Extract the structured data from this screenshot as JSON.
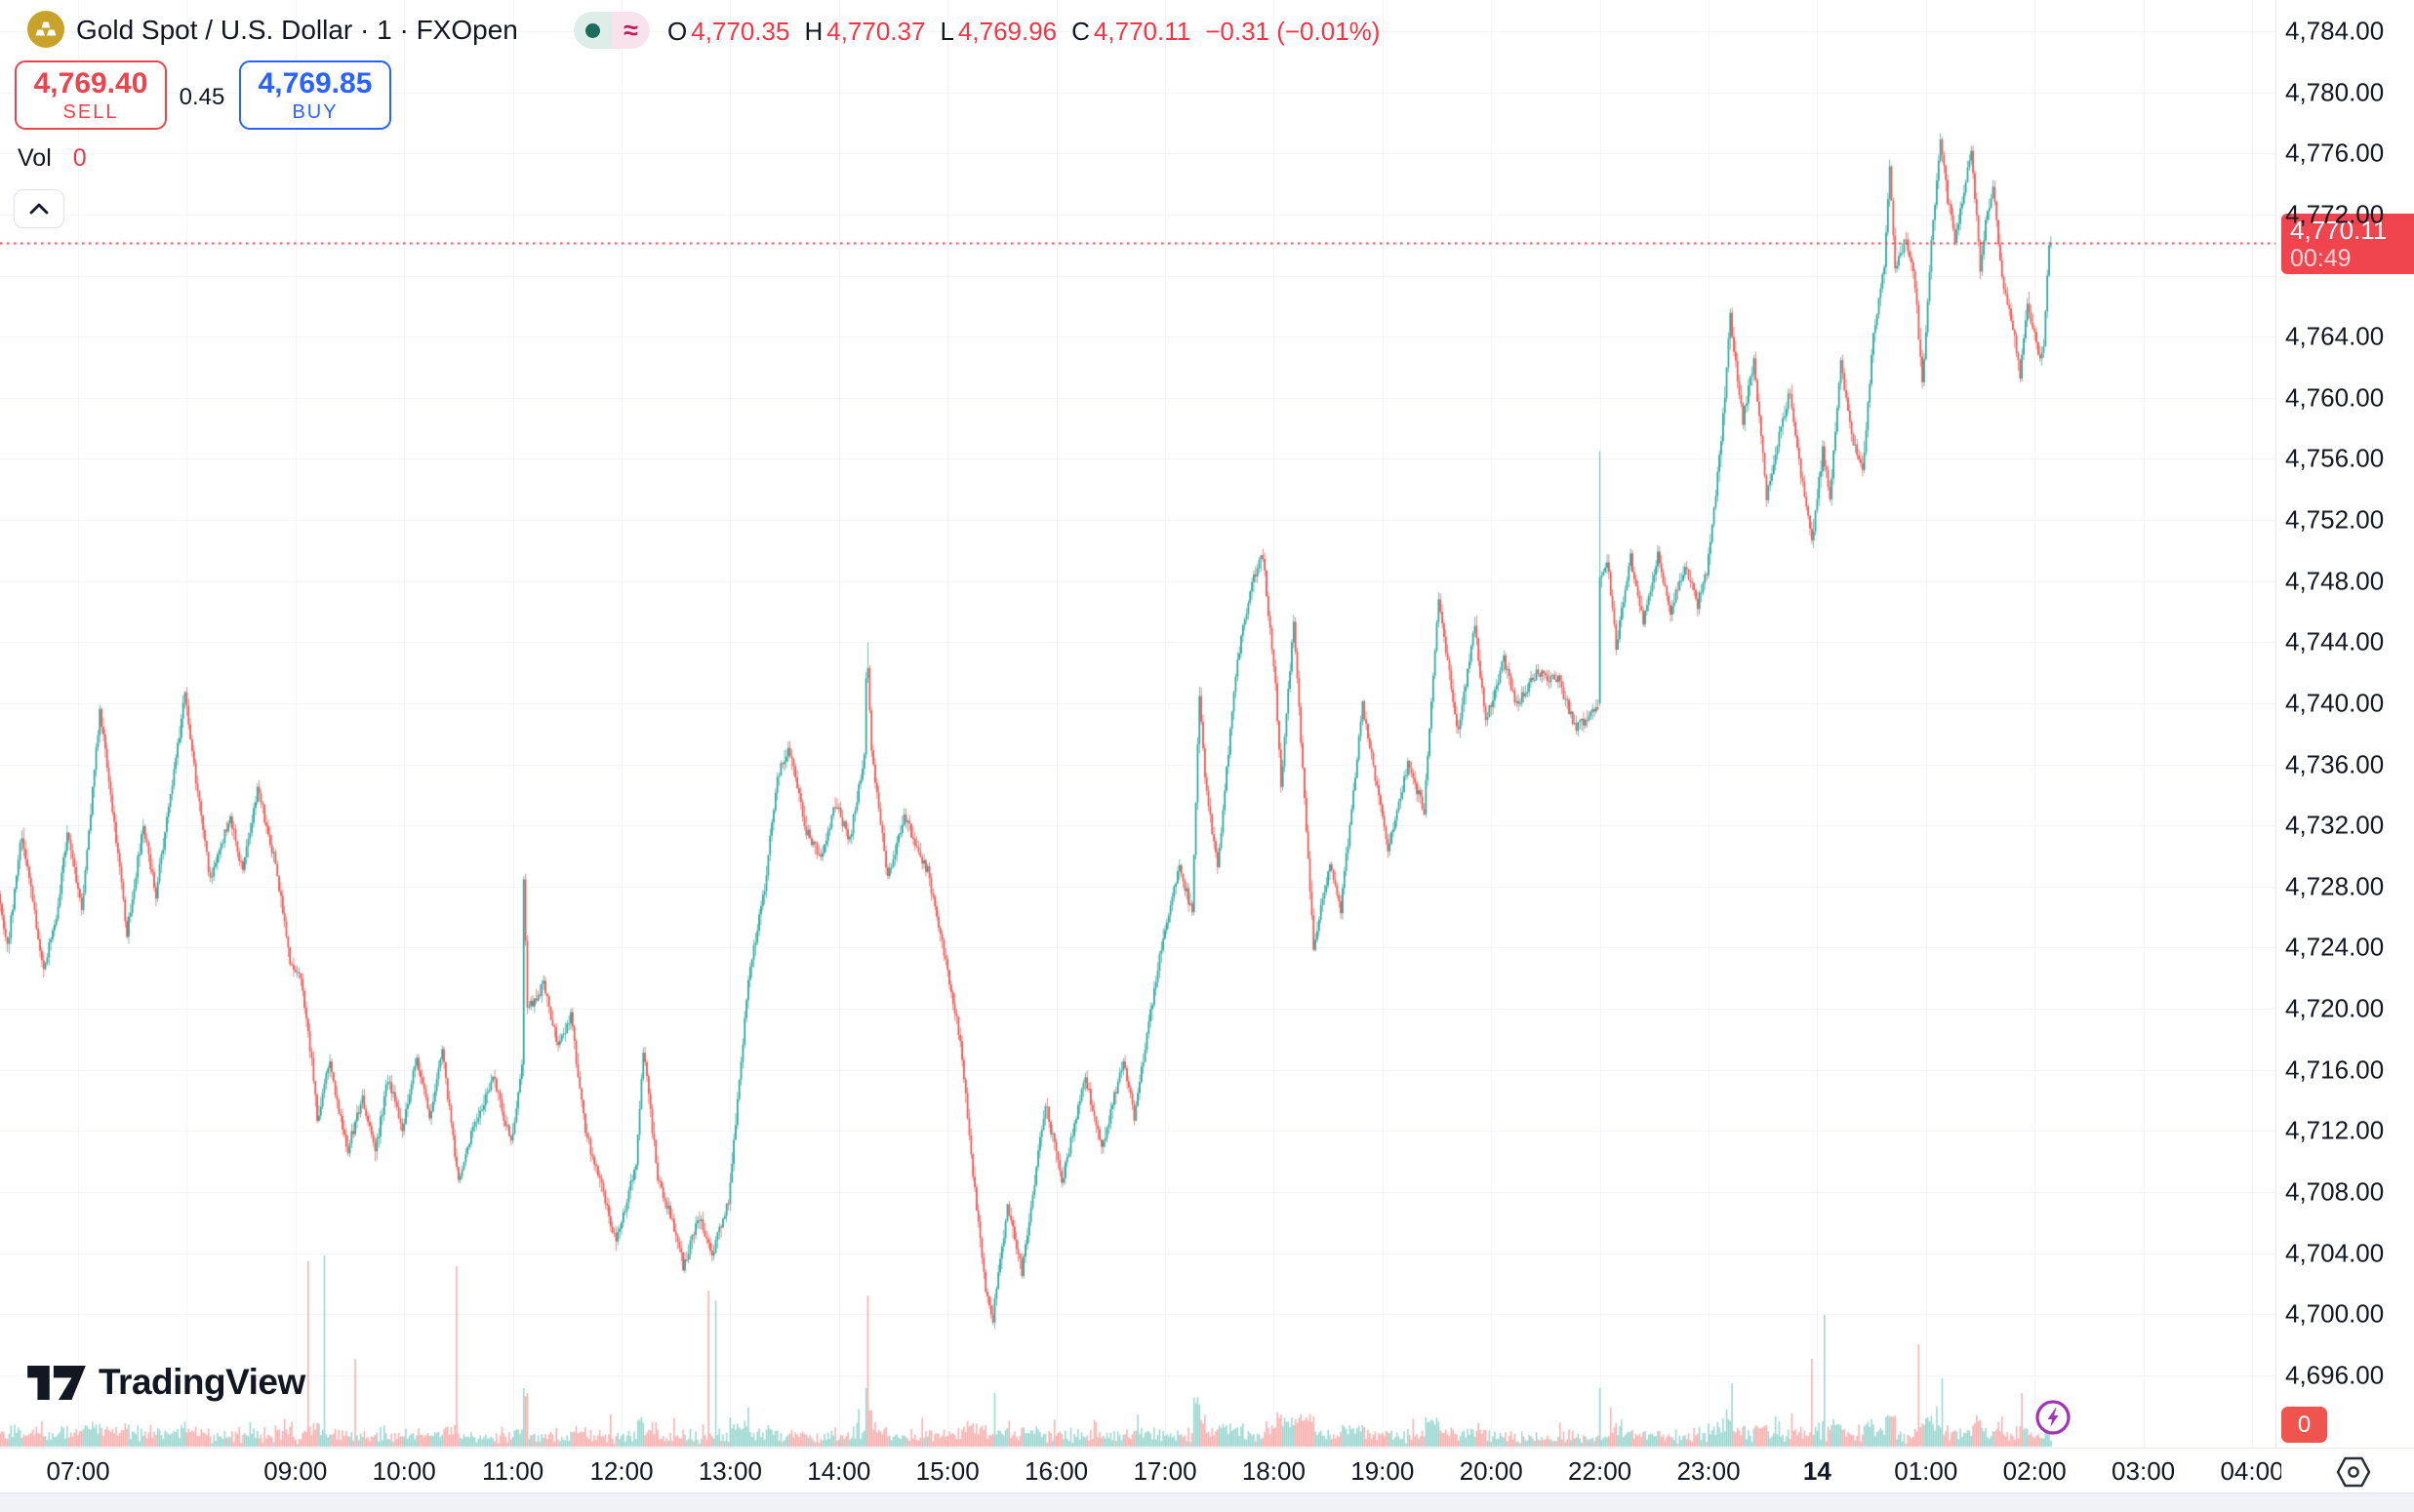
{
  "header": {
    "title": "Gold Spot / U.S. Dollar · 1 · FXOpen",
    "market_status": {
      "delayed_symbol": "≈"
    },
    "ohlc": {
      "open_label": "O",
      "open": "4,770.35",
      "high_label": "H",
      "high": "4,770.37",
      "low_label": "L",
      "low": "4,769.96",
      "close_label": "C",
      "close": "4,770.11",
      "change": "−0.31 (−0.01%)"
    }
  },
  "order_panel": {
    "sell_price": "4,769.40",
    "sell_label": "SELL",
    "spread": "0.45",
    "buy_price": "4,769.85",
    "buy_label": "BUY"
  },
  "volume_indicator": {
    "label": "Vol",
    "value": "0"
  },
  "watermark": "TradingView",
  "price_axis": {
    "labels": [
      {
        "text": "4,784.00",
        "value": 4784
      },
      {
        "text": "4,780.00",
        "value": 4780
      },
      {
        "text": "4,776.00",
        "value": 4776
      },
      {
        "text": "4,772.00",
        "value": 4772
      },
      {
        "text": "4,764.00",
        "value": 4764
      },
      {
        "text": "4,760.00",
        "value": 4760
      },
      {
        "text": "4,756.00",
        "value": 4756
      },
      {
        "text": "4,752.00",
        "value": 4752
      },
      {
        "text": "4,748.00",
        "value": 4748
      },
      {
        "text": "4,744.00",
        "value": 4744
      },
      {
        "text": "4,740.00",
        "value": 4740
      },
      {
        "text": "4,736.00",
        "value": 4736
      },
      {
        "text": "4,732.00",
        "value": 4732
      },
      {
        "text": "4,728.00",
        "value": 4728
      },
      {
        "text": "4,724.00",
        "value": 4724
      },
      {
        "text": "4,720.00",
        "value": 4720
      },
      {
        "text": "4,716.00",
        "value": 4716
      },
      {
        "text": "4,712.00",
        "value": 4712
      },
      {
        "text": "4,708.00",
        "value": 4708
      },
      {
        "text": "4,704.00",
        "value": 4704
      },
      {
        "text": "4,700.00",
        "value": 4700
      },
      {
        "text": "4,696.00",
        "value": 4696
      }
    ],
    "last_price_badge": {
      "price": "4,770.11",
      "countdown": "00:49"
    },
    "volume_badge": "0"
  },
  "time_axis": {
    "labels": [
      {
        "text": "07:00",
        "slot": 0,
        "bold": false
      },
      {
        "text": "09:00",
        "slot": 2,
        "bold": false
      },
      {
        "text": "10:00",
        "slot": 3,
        "bold": false
      },
      {
        "text": "11:00",
        "slot": 4,
        "bold": false
      },
      {
        "text": "12:00",
        "slot": 5,
        "bold": false
      },
      {
        "text": "13:00",
        "slot": 6,
        "bold": false
      },
      {
        "text": "14:00",
        "slot": 7,
        "bold": false
      },
      {
        "text": "15:00",
        "slot": 8,
        "bold": false
      },
      {
        "text": "16:00",
        "slot": 9,
        "bold": false
      },
      {
        "text": "17:00",
        "slot": 10,
        "bold": false
      },
      {
        "text": "18:00",
        "slot": 11,
        "bold": false
      },
      {
        "text": "19:00",
        "slot": 12,
        "bold": false
      },
      {
        "text": "20:00",
        "slot": 13,
        "bold": false
      },
      {
        "text": "22:00",
        "slot": 14,
        "bold": false
      },
      {
        "text": "23:00",
        "slot": 15,
        "bold": false
      },
      {
        "text": "14",
        "slot": 16,
        "bold": true
      },
      {
        "text": "01:00",
        "slot": 17,
        "bold": false
      },
      {
        "text": "02:00",
        "slot": 18,
        "bold": false
      },
      {
        "text": "03:00",
        "slot": 19,
        "bold": false
      },
      {
        "text": "04:00",
        "slot": 20,
        "bold": false
      }
    ]
  },
  "colors": {
    "up": "#26A69A",
    "down": "#EF5350",
    "vol_up": "rgba(38,166,154,0.45)",
    "vol_down": "rgba(239,83,80,0.45)",
    "sell_red": "#E9454F",
    "buy_blue": "#2962FF",
    "last_badge": "#F0444E",
    "vol_badge": "#F0544E",
    "text": "#131722",
    "grid": "#F0F2F6",
    "axis_border": "#E0E3EB",
    "gold": "#C9A22B",
    "purple": "#A234B8"
  },
  "chart_data": {
    "type": "candlestick",
    "symbol": "Gold Spot / U.S. Dollar",
    "interval": "1 minute",
    "feed": "FXOpen",
    "current_bar": {
      "open": 4770.35,
      "high": 4770.37,
      "low": 4769.96,
      "close": 4770.11,
      "change": -0.31,
      "change_pct": -0.01
    },
    "bid": 4769.4,
    "ask": 4769.85,
    "spread": 0.45,
    "session_high": 4776.8,
    "session_low": 4699.8,
    "last_price": 4770.11,
    "y_axis": {
      "top_price": 4784,
      "bottom_price": 4696,
      "tick_step": 4,
      "grid": true
    },
    "x_axis": {
      "first_bar": "06:17",
      "last_bar": "02:09 next day (day 14)",
      "data_gap": "21:00–21:59 (daily break)",
      "grid": true
    },
    "price_path_minutes_from_0600": [
      [
        17,
        4727.5
      ],
      [
        22,
        4724
      ],
      [
        30,
        4731.5
      ],
      [
        42,
        4722.5
      ],
      [
        49,
        4726
      ],
      [
        55,
        4731.5
      ],
      [
        63,
        4726.5
      ],
      [
        73,
        4739.5
      ],
      [
        80,
        4733
      ],
      [
        88,
        4725
      ],
      [
        97,
        4732
      ],
      [
        104,
        4727.5
      ],
      [
        120,
        4740.5
      ],
      [
        127,
        4734
      ],
      [
        134,
        4728.5
      ],
      [
        145,
        4732.5
      ],
      [
        152,
        4729
      ],
      [
        160,
        4734.5
      ],
      [
        170,
        4729.5
      ],
      [
        178,
        4723
      ],
      [
        184,
        4722
      ],
      [
        190,
        4716.5
      ],
      [
        193,
        4712.8
      ],
      [
        200,
        4716.5
      ],
      [
        205,
        4713.2
      ],
      [
        210,
        4710.8
      ],
      [
        218,
        4714.2
      ],
      [
        225,
        4710.5
      ],
      [
        232,
        4715.5
      ],
      [
        240,
        4712.2
      ],
      [
        248,
        4716.8
      ],
      [
        255,
        4713
      ],
      [
        262,
        4717.2
      ],
      [
        271,
        4708.6
      ],
      [
        280,
        4712.5
      ],
      [
        290,
        4715.5
      ],
      [
        300,
        4711.2
      ],
      [
        306,
        4716
      ],
      [
        307,
        4728.6
      ],
      [
        309,
        4720
      ],
      [
        318,
        4721.5
      ],
      [
        326,
        4717.5
      ],
      [
        333,
        4719.5
      ],
      [
        341,
        4712
      ],
      [
        352,
        4707.5
      ],
      [
        358,
        4704.6
      ],
      [
        364,
        4707.5
      ],
      [
        369,
        4709.8
      ],
      [
        373,
        4717.4
      ],
      [
        381,
        4709
      ],
      [
        390,
        4705.7
      ],
      [
        395,
        4703.2
      ],
      [
        404,
        4706.4
      ],
      [
        411,
        4703.8
      ],
      [
        420,
        4707.5
      ],
      [
        431,
        4721.8
      ],
      [
        440,
        4728
      ],
      [
        447,
        4735
      ],
      [
        453,
        4737.2
      ],
      [
        463,
        4731.7
      ],
      [
        471,
        4729.8
      ],
      [
        479,
        4733.5
      ],
      [
        487,
        4731
      ],
      [
        495,
        4736.5
      ],
      [
        496.5,
        4743.8
      ],
      [
        499,
        4736.8
      ],
      [
        508,
        4728.5
      ],
      [
        517,
        4732.6
      ],
      [
        530,
        4729
      ],
      [
        540,
        4723
      ],
      [
        548,
        4718
      ],
      [
        556,
        4708
      ],
      [
        562,
        4701.5
      ],
      [
        566,
        4699.8
      ],
      [
        574,
        4707
      ],
      [
        582,
        4702.8
      ],
      [
        595,
        4713.8
      ],
      [
        604,
        4708.7
      ],
      [
        617,
        4715.6
      ],
      [
        626,
        4710.8
      ],
      [
        638,
        4716.7
      ],
      [
        644,
        4713
      ],
      [
        660,
        4724.8
      ],
      [
        669,
        4729.2
      ],
      [
        676,
        4726.3
      ],
      [
        680,
        4740.6
      ],
      [
        683,
        4735
      ],
      [
        690,
        4729.3
      ],
      [
        701,
        4743
      ],
      [
        710,
        4748.3
      ],
      [
        715,
        4749.6
      ],
      [
        722,
        4741
      ],
      [
        725,
        4734.5
      ],
      [
        732,
        4745.5
      ],
      [
        743,
        4724
      ],
      [
        752,
        4729.5
      ],
      [
        758,
        4726.5
      ],
      [
        770,
        4739.8
      ],
      [
        784,
        4730.5
      ],
      [
        795,
        4736
      ],
      [
        804,
        4733
      ],
      [
        812,
        4746.8
      ],
      [
        823,
        4738
      ],
      [
        832,
        4745.3
      ],
      [
        838,
        4738.7
      ],
      [
        848,
        4742.9
      ],
      [
        855,
        4739.8
      ],
      [
        866,
        4742
      ],
      [
        878,
        4741.5
      ],
      [
        888,
        4738.3
      ],
      [
        899,
        4739.8
      ],
      [
        960,
        4740
      ],
      [
        960.5,
        4756.5
      ],
      [
        961,
        4748
      ],
      [
        965,
        4749.5
      ],
      [
        970,
        4743.8
      ],
      [
        978,
        4749.5
      ],
      [
        985,
        4745.5
      ],
      [
        993,
        4749.8
      ],
      [
        1000,
        4746
      ],
      [
        1008,
        4749
      ],
      [
        1015,
        4746.5
      ],
      [
        1020,
        4748.5
      ],
      [
        1028,
        4757
      ],
      [
        1033,
        4765.3
      ],
      [
        1040,
        4758.5
      ],
      [
        1046,
        4762.5
      ],
      [
        1053,
        4753.5
      ],
      [
        1060,
        4757.5
      ],
      [
        1066,
        4760.5
      ],
      [
        1072,
        4755
      ],
      [
        1078,
        4750.6
      ],
      [
        1084,
        4756.5
      ],
      [
        1088,
        4753.5
      ],
      [
        1094,
        4762.5
      ],
      [
        1100,
        4757.5
      ],
      [
        1106,
        4755.2
      ],
      [
        1112,
        4764
      ],
      [
        1118,
        4768.5
      ],
      [
        1121,
        4775.2
      ],
      [
        1124,
        4768.5
      ],
      [
        1130,
        4770.5
      ],
      [
        1135,
        4767.5
      ],
      [
        1139,
        4760.8
      ],
      [
        1144,
        4770
      ],
      [
        1149,
        4776.8
      ],
      [
        1153,
        4773
      ],
      [
        1157,
        4770.3
      ],
      [
        1162,
        4773.5
      ],
      [
        1166,
        4776.3
      ],
      [
        1171,
        4768.5
      ],
      [
        1174,
        4771.5
      ],
      [
        1178,
        4773.8
      ],
      [
        1183,
        4768
      ],
      [
        1189,
        4764.5
      ],
      [
        1193,
        4761.5
      ],
      [
        1197,
        4766.5
      ],
      [
        1201,
        4764
      ],
      [
        1204,
        4762.5
      ],
      [
        1206,
        4763.5
      ],
      [
        1209,
        4770.11
      ],
      [
        1210,
        4770.11
      ]
    ],
    "volume_spikes_minute_height_dir": [
      [
        187,
        190,
        "down"
      ],
      [
        196,
        196,
        "up"
      ],
      [
        213,
        90,
        "down"
      ],
      [
        269,
        185,
        "down"
      ],
      [
        408,
        160,
        "down"
      ],
      [
        412,
        150,
        "up"
      ],
      [
        496,
        155,
        "down"
      ],
      [
        566,
        55,
        "up"
      ],
      [
        1033,
        65,
        "up"
      ],
      [
        1077,
        90,
        "down"
      ],
      [
        1084,
        135,
        "up"
      ],
      [
        1136,
        105,
        "down"
      ],
      [
        1149,
        70,
        "up"
      ],
      [
        1193,
        55,
        "down"
      ]
    ],
    "volume_last_value": 0
  }
}
